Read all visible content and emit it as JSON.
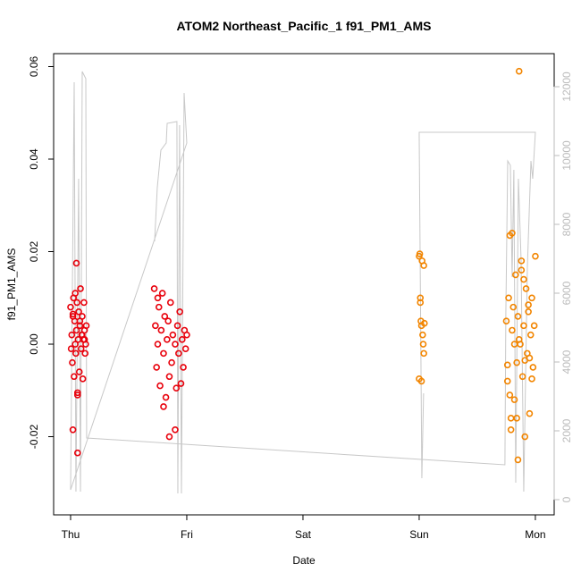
{
  "chart_data": {
    "type": "scatter",
    "title": "ATOM2 Northeast_Pacific_1 f91_PM1_AMS",
    "xlabel": "Date",
    "ylabel": "f91_PM1_AMS",
    "xlim": [
      -0.146,
      4.162
    ],
    "ylim": [
      -0.0369,
      0.0628
    ],
    "y2lim": [
      -442,
      12961
    ],
    "xticks": [
      {
        "value": 0,
        "label": "Thu"
      },
      {
        "value": 1,
        "label": "Fri"
      },
      {
        "value": 2,
        "label": "Sat"
      },
      {
        "value": 3,
        "label": "Sun"
      },
      {
        "value": 4,
        "label": "Mon"
      }
    ],
    "yticks": [
      -0.02,
      {
        "value": 0,
        "label": "0.00"
      },
      0.02,
      0.04,
      0.06
    ],
    "y2ticks": [
      0,
      2000,
      4000,
      6000,
      8000,
      10000,
      12000
    ],
    "grid": false,
    "series": [
      {
        "type": "line",
        "axis": "y2",
        "color": "#c8c8c8",
        "x": [
          0.723,
          0.746,
          0.777,
          0.823,
          0.831,
          0.915,
          0.923,
          0.938,
          0.954,
          0.977,
          1.0,
          0.0,
          0.031,
          0.046,
          0.069,
          0.085,
          0.1,
          0.131,
          0.138,
          3.738,
          3.746,
          3.762,
          3.785,
          3.8,
          3.815,
          3.831,
          3.854,
          3.877,
          3.9,
          3.931,
          3.962,
          3.977,
          4.0,
          3.0,
          3.023,
          3.038
        ],
        "values": [
          7506,
          9065,
          10156,
          10364,
          10935,
          10987,
          182,
          10883,
          182,
          11818,
          10364,
          286,
          12130,
          234,
          9325,
          234,
          12442,
          12234,
          1792,
          1013,
          5429,
          9844,
          9714,
          6468,
          9584,
          494,
          9325,
          6987,
          234,
          6727,
          9844,
          9325,
          10675,
          10675,
          623,
          3091
        ]
      },
      {
        "type": "scatter",
        "color": "#e8000b",
        "x": [
          0.0,
          0.01,
          0.015,
          0.02,
          0.025,
          0.03,
          0.035,
          0.04,
          0.045,
          0.05,
          0.055,
          0.06,
          0.065,
          0.07,
          0.075,
          0.08,
          0.085,
          0.09,
          0.095,
          0.1,
          0.105,
          0.11,
          0.115,
          0.12,
          0.125,
          0.13,
          0.135,
          0.005,
          0.02,
          0.04,
          0.06,
          0.08,
          0.1,
          0.12,
          0.05,
          0.06,
          0.02,
          0.72,
          0.73,
          0.74,
          0.75,
          0.76,
          0.77,
          0.78,
          0.79,
          0.8,
          0.81,
          0.82,
          0.83,
          0.84,
          0.85,
          0.86,
          0.87,
          0.88,
          0.9,
          0.91,
          0.92,
          0.93,
          0.94,
          0.95,
          0.96,
          0.97,
          0.98,
          0.99,
          1.0,
          0.85,
          0.9,
          0.75,
          0.8
        ],
        "values": [
          0.008,
          0.002,
          -0.004,
          0.006,
          0.01,
          -0.007,
          0.005,
          0.011,
          -0.002,
          0.003,
          0.009,
          -0.0105,
          0.001,
          0.007,
          -0.006,
          0.004,
          0.012,
          -0.001,
          0.002,
          0.006,
          -0.0075,
          0.001,
          0.009,
          0.003,
          -0.002,
          0.0,
          0.004,
          -0.001,
          0.0065,
          0.0,
          -0.011,
          0.005,
          0.002,
          0.001,
          0.0175,
          -0.0235,
          -0.0185,
          0.012,
          0.004,
          -0.005,
          0.0,
          0.008,
          -0.009,
          0.003,
          0.011,
          -0.002,
          0.006,
          -0.0115,
          0.001,
          0.005,
          -0.007,
          0.009,
          -0.004,
          0.002,
          0.0,
          -0.0095,
          0.004,
          -0.002,
          0.007,
          -0.0085,
          0.001,
          -0.005,
          0.003,
          -0.001,
          0.002,
          -0.02,
          -0.0185,
          0.01,
          -0.0135
        ]
      },
      {
        "type": "scatter",
        "color": "#f28500",
        "x": [
          3.0,
          3.005,
          3.01,
          3.015,
          3.02,
          3.025,
          3.03,
          3.035,
          3.04,
          3.045,
          3.0,
          3.02,
          3.04,
          3.01,
          3.75,
          3.76,
          3.77,
          3.78,
          3.79,
          3.8,
          3.81,
          3.82,
          3.83,
          3.84,
          3.85,
          3.86,
          3.87,
          3.88,
          3.89,
          3.9,
          3.91,
          3.92,
          3.93,
          3.94,
          3.95,
          3.96,
          3.97,
          3.98,
          3.99,
          4.0,
          3.76,
          3.79,
          3.82,
          3.85,
          3.88,
          3.91,
          3.94,
          3.97,
          3.8,
          3.86,
          3.9,
          3.78,
          3.95,
          3.84
        ],
        "values": [
          0.019,
          0.0195,
          0.01,
          0.005,
          0.004,
          0.018,
          0.002,
          0.0,
          -0.002,
          0.0045,
          -0.0075,
          -0.008,
          0.017,
          0.009,
          0.005,
          -0.008,
          0.01,
          0.0235,
          -0.016,
          0.003,
          0.008,
          -0.012,
          0.015,
          -0.004,
          0.006,
          0.059,
          0.0,
          0.018,
          -0.007,
          0.004,
          -0.02,
          0.012,
          -0.002,
          0.007,
          -0.015,
          0.002,
          0.01,
          -0.005,
          0.004,
          0.019,
          -0.0045,
          -0.0185,
          0.0,
          -0.025,
          0.016,
          -0.0035,
          0.0085,
          -0.0075,
          0.024,
          0.001,
          0.014,
          -0.011,
          -0.003,
          -0.016
        ]
      }
    ]
  }
}
